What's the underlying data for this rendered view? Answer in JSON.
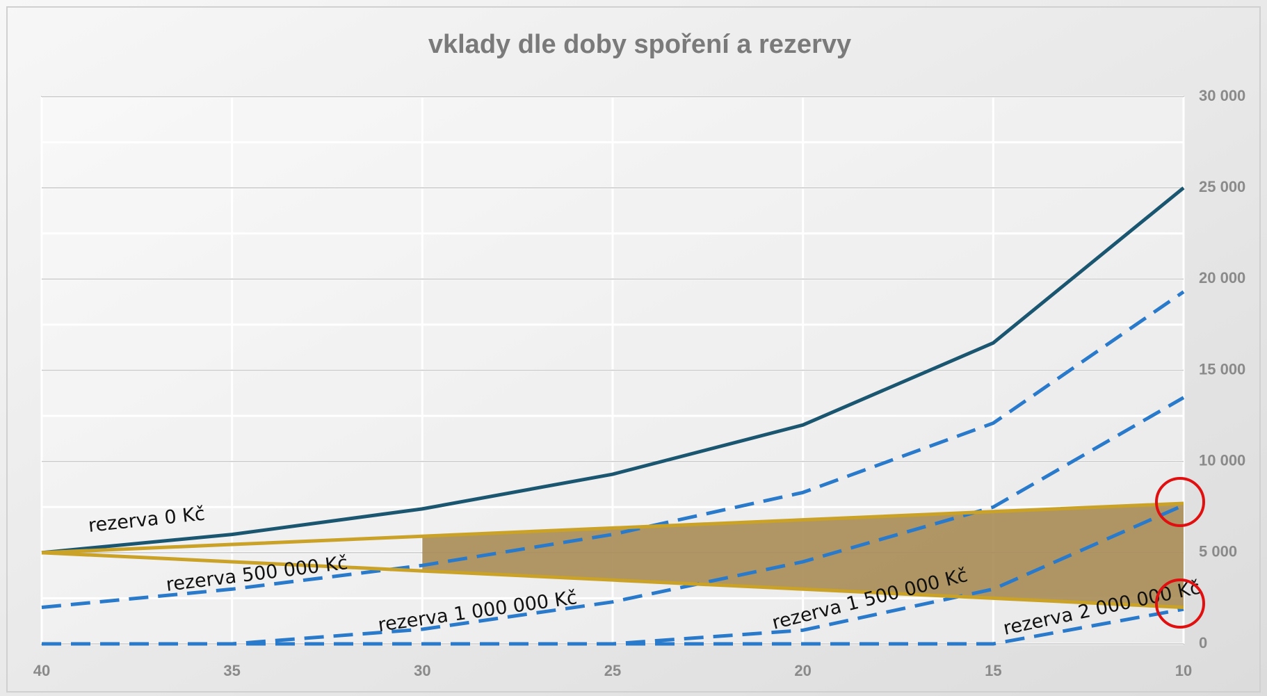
{
  "chart_data": {
    "type": "line",
    "title": "vklady dle doby spoření a rezervy",
    "x": [
      40,
      35,
      30,
      25,
      20,
      15,
      10
    ],
    "xlim": [
      40,
      10
    ],
    "xticks": [
      40,
      35,
      30,
      25,
      20,
      15,
      10
    ],
    "ylim": [
      0,
      30000
    ],
    "yticks": [
      0,
      {
        "value": 5000,
        "label": "5 000"
      },
      {
        "value": 10000,
        "label": "10 000"
      },
      {
        "value": 15000,
        "label": "15 000"
      },
      {
        "value": 20000,
        "label": "20 000"
      },
      {
        "value": 25000,
        "label": "25 000"
      },
      {
        "value": 30000,
        "label": "30 000"
      }
    ],
    "y_minor_step": 2500,
    "grid": true,
    "y_axis_side": "right",
    "series": [
      {
        "name": "rezerva 0 Kč",
        "color": "#1b5670",
        "dash": false,
        "values": [
          5000,
          6000,
          7400,
          9300,
          12000,
          16500,
          25000
        ]
      },
      {
        "name": "rezerva 500 000 Kč",
        "color": "#2a7acb",
        "dash": true,
        "values": [
          2000,
          3000,
          4300,
          6000,
          8300,
          12100,
          19300
        ]
      },
      {
        "name": "rezerva 1 000 000 Kč",
        "color": "#2a7acb",
        "dash": true,
        "values": [
          0,
          0,
          800,
          2300,
          4500,
          7500,
          13500
        ]
      },
      {
        "name": "rezerva 1 500 000 Kč",
        "color": "#2a7acb",
        "dash": true,
        "values": [
          0,
          0,
          0,
          0,
          750,
          3000,
          7600
        ]
      },
      {
        "name": "rezerva 2 000 000 Kč",
        "color": "#2a7acb",
        "dash": true,
        "values": [
          0,
          0,
          0,
          0,
          0,
          0,
          1900
        ]
      },
      {
        "color": "#c9a227",
        "dash": false,
        "values": [
          5000,
          5450,
          5900,
          6350,
          6800,
          7250,
          7700
        ]
      },
      {
        "color": "#c9a227",
        "dash": false,
        "values": [
          5000,
          4500,
          4000,
          3500,
          3000,
          2500,
          2000
        ]
      }
    ]
  }
}
